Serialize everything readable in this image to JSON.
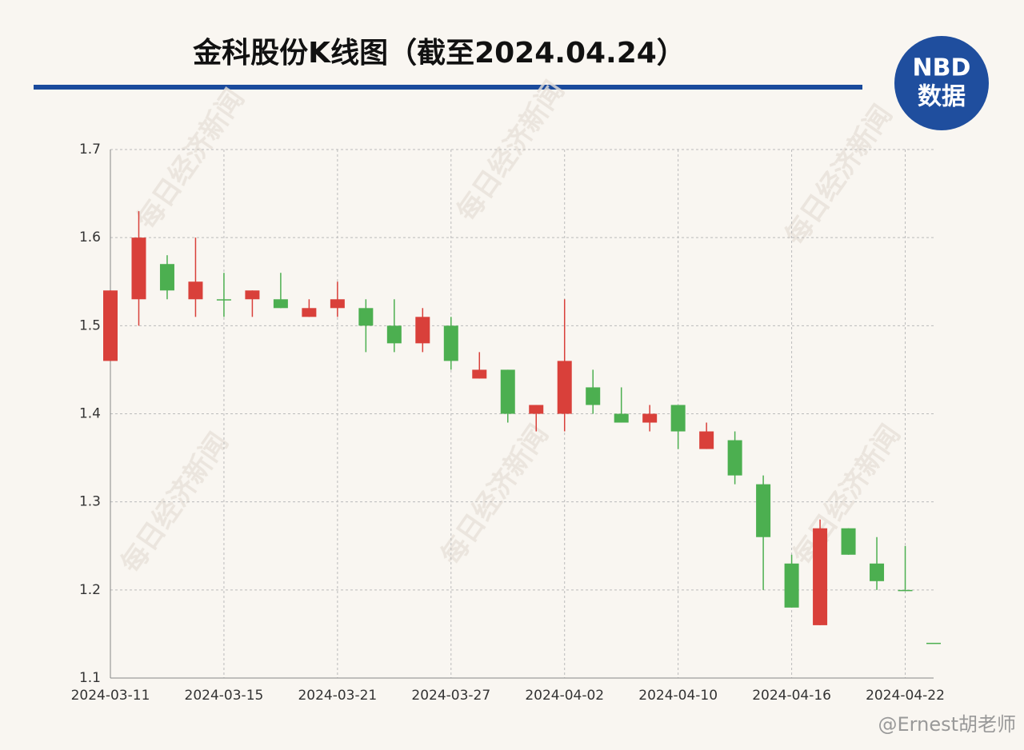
{
  "chart_data": {
    "type": "candlestick",
    "title": "金科股份K线图（截至2024.04.24）",
    "categories": [
      "2024-03-11",
      null,
      null,
      null,
      "2024-03-15",
      null,
      null,
      null,
      "2024-03-21",
      null,
      null,
      null,
      "2024-03-27",
      null,
      null,
      null,
      "2024-04-02",
      null,
      null,
      null,
      "2024-04-10",
      null,
      null,
      null,
      "2024-04-16",
      null,
      null,
      null,
      "2024-04-22",
      null
    ],
    "open": [
      1.46,
      1.53,
      1.57,
      1.53,
      1.53,
      1.53,
      1.53,
      1.51,
      1.52,
      1.52,
      1.5,
      1.48,
      1.5,
      1.44,
      1.45,
      1.4,
      1.4,
      1.43,
      1.4,
      1.39,
      1.41,
      1.36,
      1.37,
      1.32,
      1.23,
      1.16,
      1.27,
      1.23,
      1.2,
      1.14
    ],
    "high": [
      1.54,
      1.63,
      1.58,
      1.6,
      1.56,
      1.54,
      1.56,
      1.53,
      1.55,
      1.53,
      1.53,
      1.52,
      1.51,
      1.47,
      1.45,
      1.41,
      1.53,
      1.45,
      1.43,
      1.41,
      1.41,
      1.39,
      1.38,
      1.33,
      1.24,
      1.28,
      1.27,
      1.26,
      1.25,
      1.14
    ],
    "low": [
      1.46,
      1.5,
      1.53,
      1.51,
      1.51,
      1.51,
      1.52,
      1.51,
      1.51,
      1.47,
      1.47,
      1.47,
      1.45,
      1.44,
      1.39,
      1.38,
      1.38,
      1.4,
      1.39,
      1.38,
      1.36,
      1.36,
      1.32,
      1.2,
      1.18,
      1.16,
      1.24,
      1.2,
      1.2,
      1.14
    ],
    "close": [
      1.54,
      1.6,
      1.54,
      1.55,
      1.53,
      1.54,
      1.52,
      1.52,
      1.53,
      1.5,
      1.48,
      1.51,
      1.46,
      1.45,
      1.4,
      1.41,
      1.46,
      1.41,
      1.39,
      1.4,
      1.38,
      1.38,
      1.33,
      1.26,
      1.18,
      1.27,
      1.24,
      1.21,
      1.2,
      1.14
    ],
    "up_color": "#d9403a",
    "down_color": "#4caf50",
    "ylim": [
      1.1,
      1.7
    ],
    "yticks": [
      1.1,
      1.2,
      1.3,
      1.4,
      1.5,
      1.6,
      1.7
    ],
    "grid": true
  },
  "logo": {
    "top": "NBD",
    "bottom": "数据"
  },
  "watermark": "每日经济新闻",
  "credit": "@Ernest胡老师"
}
